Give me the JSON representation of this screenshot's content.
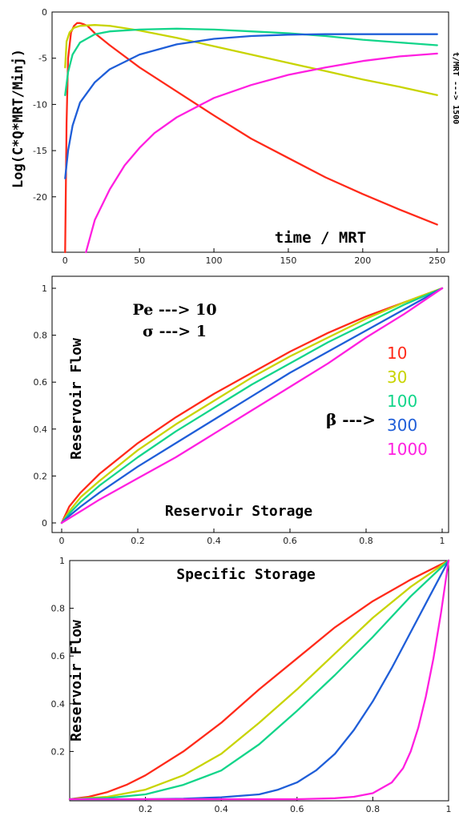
{
  "chart_data": [
    {
      "type": "line",
      "ylabel": "Log(C*Q*MRT/Minj)",
      "xlabel": "time / MRT",
      "side_note": "t/MRT ---> 1500",
      "xlim": [
        -5,
        255
      ],
      "ylim": [
        -26,
        0
      ],
      "xticks": [
        0,
        50,
        100,
        150,
        200,
        250
      ],
      "yticks": [
        0,
        -5,
        -10,
        -15,
        -20
      ],
      "series": [
        {
          "color": "#ff2a1a",
          "x": [
            0,
            1,
            2,
            4,
            6,
            8,
            10,
            12,
            15,
            20,
            30,
            50,
            75,
            100,
            125,
            150,
            175,
            200,
            225,
            250
          ],
          "y": [
            -26,
            -12,
            -5,
            -2.2,
            -1.5,
            -1.2,
            -1.2,
            -1.3,
            -1.5,
            -2.3,
            -3.6,
            -6.0,
            -8.6,
            -11.2,
            -13.7,
            -15.8,
            -17.9,
            -19.7,
            -21.4,
            -23.0
          ]
        },
        {
          "color": "#c8d400",
          "x": [
            0,
            1,
            3,
            6,
            10,
            20,
            30,
            50,
            75,
            100,
            125,
            150,
            175,
            200,
            225,
            250
          ],
          "y": [
            -6,
            -3.2,
            -2.2,
            -1.7,
            -1.5,
            -1.4,
            -1.5,
            -2.0,
            -2.8,
            -3.7,
            -4.6,
            -5.5,
            -6.4,
            -7.3,
            -8.1,
            -9.0
          ]
        },
        {
          "color": "#12d58a",
          "x": [
            0,
            2,
            5,
            10,
            20,
            30,
            50,
            75,
            100,
            125,
            150,
            175,
            200,
            225,
            250
          ],
          "y": [
            -9,
            -6.5,
            -4.6,
            -3.3,
            -2.4,
            -2.1,
            -1.9,
            -1.8,
            -1.9,
            -2.1,
            -2.3,
            -2.6,
            -3.0,
            -3.3,
            -3.6
          ]
        },
        {
          "color": "#1f5ed8",
          "x": [
            0,
            2,
            5,
            10,
            20,
            30,
            50,
            75,
            100,
            125,
            150,
            175,
            200,
            225,
            250
          ],
          "y": [
            -18,
            -15,
            -12.3,
            -9.8,
            -7.6,
            -6.2,
            -4.6,
            -3.5,
            -2.9,
            -2.6,
            -2.45,
            -2.4,
            -2.4,
            -2.4,
            -2.4
          ]
        },
        {
          "color": "#ff1fe0",
          "x": [
            14,
            20,
            30,
            40,
            50,
            60,
            75,
            100,
            125,
            150,
            175,
            200,
            225,
            250
          ],
          "y": [
            -26,
            -22.5,
            -19.2,
            -16.6,
            -14.7,
            -13.1,
            -11.4,
            -9.3,
            -7.9,
            -6.8,
            -6.0,
            -5.3,
            -4.8,
            -4.5
          ]
        }
      ]
    },
    {
      "type": "line",
      "ylabel": "Reservoir Flow",
      "xlabel": "Reservoir Storage",
      "params": [
        "Pe ---> 10",
        "σ ---> 1"
      ],
      "beta_label": "β --->",
      "xlim": [
        0,
        1
      ],
      "ylim": [
        0,
        1
      ],
      "xticks": [
        0,
        0.2,
        0.4,
        0.6,
        0.8,
        1
      ],
      "yticks": [
        0,
        0.2,
        0.4,
        0.6,
        0.8,
        1
      ],
      "series": [
        {
          "name": "10",
          "color": "#ff2a1a",
          "x": [
            0,
            0.02,
            0.05,
            0.1,
            0.2,
            0.3,
            0.4,
            0.5,
            0.6,
            0.7,
            0.8,
            0.9,
            1
          ],
          "y": [
            0,
            0.07,
            0.13,
            0.21,
            0.34,
            0.45,
            0.55,
            0.64,
            0.73,
            0.81,
            0.88,
            0.94,
            1
          ]
        },
        {
          "name": "30",
          "color": "#c8d400",
          "x": [
            0,
            0.02,
            0.05,
            0.1,
            0.2,
            0.3,
            0.4,
            0.5,
            0.6,
            0.7,
            0.8,
            0.9,
            1
          ],
          "y": [
            0,
            0.05,
            0.11,
            0.18,
            0.31,
            0.42,
            0.52,
            0.62,
            0.71,
            0.79,
            0.87,
            0.94,
            1
          ]
        },
        {
          "name": "100",
          "color": "#12d58a",
          "x": [
            0,
            0.02,
            0.05,
            0.1,
            0.2,
            0.3,
            0.4,
            0.5,
            0.6,
            0.7,
            0.8,
            0.9,
            1
          ],
          "y": [
            0,
            0.04,
            0.09,
            0.16,
            0.28,
            0.39,
            0.49,
            0.59,
            0.68,
            0.77,
            0.85,
            0.93,
            1
          ]
        },
        {
          "name": "300",
          "color": "#1f5ed8",
          "x": [
            0,
            0.02,
            0.05,
            0.1,
            0.2,
            0.3,
            0.4,
            0.5,
            0.6,
            0.7,
            0.8,
            0.9,
            1
          ],
          "y": [
            0,
            0.03,
            0.07,
            0.13,
            0.24,
            0.34,
            0.44,
            0.54,
            0.64,
            0.73,
            0.82,
            0.91,
            1
          ]
        },
        {
          "name": "1000",
          "color": "#ff1fe0",
          "x": [
            0,
            0.02,
            0.05,
            0.1,
            0.2,
            0.3,
            0.4,
            0.5,
            0.6,
            0.7,
            0.8,
            0.9,
            1
          ],
          "y": [
            0,
            0.02,
            0.05,
            0.1,
            0.19,
            0.28,
            0.38,
            0.48,
            0.58,
            0.68,
            0.79,
            0.89,
            1
          ]
        }
      ]
    },
    {
      "type": "line",
      "title": "Specific Storage",
      "ylabel": "Reservoir Flow",
      "xlim": [
        0,
        1
      ],
      "ylim": [
        0,
        1
      ],
      "xticks": [
        0.2,
        0.4,
        0.6,
        0.8,
        1
      ],
      "yticks": [
        0.2,
        0.4,
        0.6,
        0.8,
        1
      ],
      "series": [
        {
          "color": "#ff2a1a",
          "x": [
            0,
            0.05,
            0.1,
            0.15,
            0.2,
            0.3,
            0.4,
            0.5,
            0.6,
            0.7,
            0.8,
            0.9,
            1
          ],
          "y": [
            0,
            0.01,
            0.03,
            0.06,
            0.1,
            0.2,
            0.32,
            0.46,
            0.59,
            0.72,
            0.83,
            0.92,
            1
          ]
        },
        {
          "color": "#c8d400",
          "x": [
            0,
            0.05,
            0.1,
            0.2,
            0.3,
            0.4,
            0.5,
            0.6,
            0.7,
            0.8,
            0.9,
            1
          ],
          "y": [
            0,
            0.005,
            0.01,
            0.04,
            0.1,
            0.19,
            0.32,
            0.46,
            0.61,
            0.76,
            0.89,
            1
          ]
        },
        {
          "color": "#12d58a",
          "x": [
            0,
            0.1,
            0.2,
            0.3,
            0.4,
            0.5,
            0.6,
            0.7,
            0.8,
            0.9,
            1
          ],
          "y": [
            0,
            0.005,
            0.02,
            0.06,
            0.12,
            0.23,
            0.37,
            0.52,
            0.68,
            0.85,
            1
          ]
        },
        {
          "color": "#1f5ed8",
          "x": [
            0,
            0.2,
            0.3,
            0.4,
            0.5,
            0.55,
            0.6,
            0.65,
            0.7,
            0.75,
            0.8,
            0.85,
            0.9,
            0.95,
            1
          ],
          "y": [
            0,
            0,
            0.002,
            0.008,
            0.02,
            0.04,
            0.07,
            0.12,
            0.19,
            0.29,
            0.41,
            0.55,
            0.7,
            0.85,
            1
          ]
        },
        {
          "color": "#ff1fe0",
          "x": [
            0,
            0.4,
            0.6,
            0.7,
            0.75,
            0.8,
            0.85,
            0.88,
            0.9,
            0.92,
            0.94,
            0.96,
            0.98,
            1
          ],
          "y": [
            0,
            0,
            0,
            0.004,
            0.01,
            0.025,
            0.07,
            0.13,
            0.2,
            0.3,
            0.43,
            0.59,
            0.78,
            1
          ]
        }
      ]
    }
  ]
}
